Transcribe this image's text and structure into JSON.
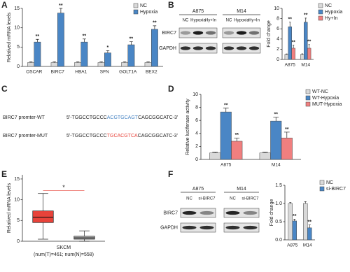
{
  "panels": [
    "A",
    "B",
    "C",
    "D",
    "E",
    "F"
  ],
  "blots": [
    {
      "groups": [
        "A875",
        "M14"
      ],
      "lanes": [
        "NC",
        "Hypoxia",
        "Hy+In"
      ],
      "rows": [
        "BIRC7",
        "GAPDH"
      ]
    },
    {
      "groups": [
        "A875",
        "M14"
      ],
      "lanes": [
        "NC",
        "si-BIRC7"
      ],
      "rows": [
        "BIRC7",
        "GAPDH"
      ]
    }
  ],
  "promoter": [
    {
      "name": "BIRC7 promter-WT",
      "left": "5'-TGGCCTGCCC",
      "site": "ACGTGCAGT",
      "right": "CAGCGGCATC-3'",
      "site_color": "#4a86c5"
    },
    {
      "name": "BIRC7 promter-MUT",
      "left": "5'-TGGCCTGCCC",
      "site": "TGCACGTCA",
      "right": "CAGCGGCATC-3'",
      "site_color": "#e8433a"
    }
  ],
  "chart_data": [
    {
      "type": "bar",
      "ylabel": "Relatived mRNA levels",
      "categories": [
        "OSCAR",
        "BIRC7",
        "HBA1",
        "SFN",
        "GOLT1A",
        "BEX2"
      ],
      "series": [
        {
          "name": "NC",
          "color": "#d9d9d9",
          "values": [
            1,
            1,
            1,
            1,
            1,
            1
          ],
          "errors": [
            0.2,
            0.2,
            0.2,
            0.2,
            0.2,
            0.2
          ]
        },
        {
          "name": "Hypoxia",
          "color": "#4a86c5",
          "values": [
            6.3,
            13.8,
            6.3,
            3.5,
            5.6,
            9.6
          ],
          "errors": [
            0.7,
            1.2,
            0.8,
            0.6,
            0.8,
            0.9
          ],
          "annotations": [
            "**",
            "**",
            "**",
            "*",
            "**",
            "**"
          ]
        }
      ],
      "ylim": [
        0,
        15
      ],
      "yticks": [
        0,
        5,
        10,
        15
      ],
      "legend": "upper right"
    },
    {
      "type": "bar",
      "ylabel": "Fold change",
      "categories": [
        "A875",
        "M14"
      ],
      "series": [
        {
          "name": "NC",
          "color": "#d9d9d9",
          "values": [
            1,
            1
          ],
          "errors": [
            0.08,
            0.1
          ]
        },
        {
          "name": "Hypoxia",
          "color": "#4a86c5",
          "values": [
            6.4,
            7.3
          ],
          "errors": [
            0.9,
            0.8
          ],
          "annotations": [
            "**",
            "**"
          ]
        },
        {
          "name": "Hy+In",
          "color": "#f07f7f",
          "values": [
            2.2,
            2.2
          ],
          "errors": [
            0.6,
            0.7
          ],
          "annotations": [
            "**",
            "**"
          ]
        }
      ],
      "ylim": [
        0,
        10
      ],
      "yticks": [
        0,
        2,
        4,
        6,
        8,
        10
      ],
      "legend": "outside right"
    },
    {
      "type": "bar",
      "ylabel": "Relative luciferase activity",
      "categories": [
        "A875",
        "M14"
      ],
      "series": [
        {
          "name": "WT-NC",
          "color": "#d9d9d9",
          "values": [
            1,
            1
          ],
          "errors": [
            0.1,
            0.1
          ]
        },
        {
          "name": "WT-Hypoxia",
          "color": "#4a86c5",
          "values": [
            7.3,
            5.9
          ],
          "errors": [
            0.6,
            0.6
          ],
          "annotations": [
            "**",
            "**"
          ]
        },
        {
          "name": "MUT-Hypoxia",
          "color": "#f07f7f",
          "values": [
            2.8,
            3.3
          ],
          "errors": [
            0.5,
            0.9
          ],
          "annotations": [
            "**",
            "**"
          ]
        }
      ],
      "ylim": [
        0,
        10
      ],
      "yticks": [
        0,
        2,
        4,
        6,
        8,
        10
      ],
      "legend": "outside right"
    },
    {
      "type": "bar",
      "ylabel": "Fold change",
      "categories": [
        "A875",
        "M14"
      ],
      "series": [
        {
          "name": "NC",
          "color": "#d9d9d9",
          "values": [
            1,
            1
          ],
          "errors": [
            0.03,
            0.05
          ]
        },
        {
          "name": "si-BIRC7",
          "color": "#4a86c5",
          "values": [
            0.52,
            0.33
          ],
          "errors": [
            0.05,
            0.08
          ],
          "annotations": [
            "**",
            "**"
          ]
        }
      ],
      "ylim": [
        0,
        1.5
      ],
      "yticks": [
        {
          "value": 0,
          "label": "0.0"
        },
        {
          "value": 0.5,
          "label": "0.5"
        },
        {
          "value": 1,
          "label": "1.0"
        },
        {
          "value": 1.5,
          "label": "1.5"
        }
      ],
      "legend": "outside right"
    },
    {
      "type": "box",
      "ylabel": "Relatived mRNA levels",
      "xlabel": "SKCM",
      "subtitle": "(num(T)=461; num(N)=558)",
      "annotation": "*",
      "boxes": [
        {
          "fill": "#e8433a",
          "whislo": 0.5,
          "q1": 4.5,
          "med": 5.8,
          "q3": 7.3,
          "whishi": 11.5
        },
        {
          "fill": "#bbbbbb",
          "whislo": 0,
          "q1": 0.5,
          "med": 0.8,
          "q3": 1.2,
          "whishi": 2.5
        }
      ],
      "ylim": [
        0,
        16
      ],
      "yticks": [
        0,
        5,
        10,
        15
      ]
    }
  ]
}
